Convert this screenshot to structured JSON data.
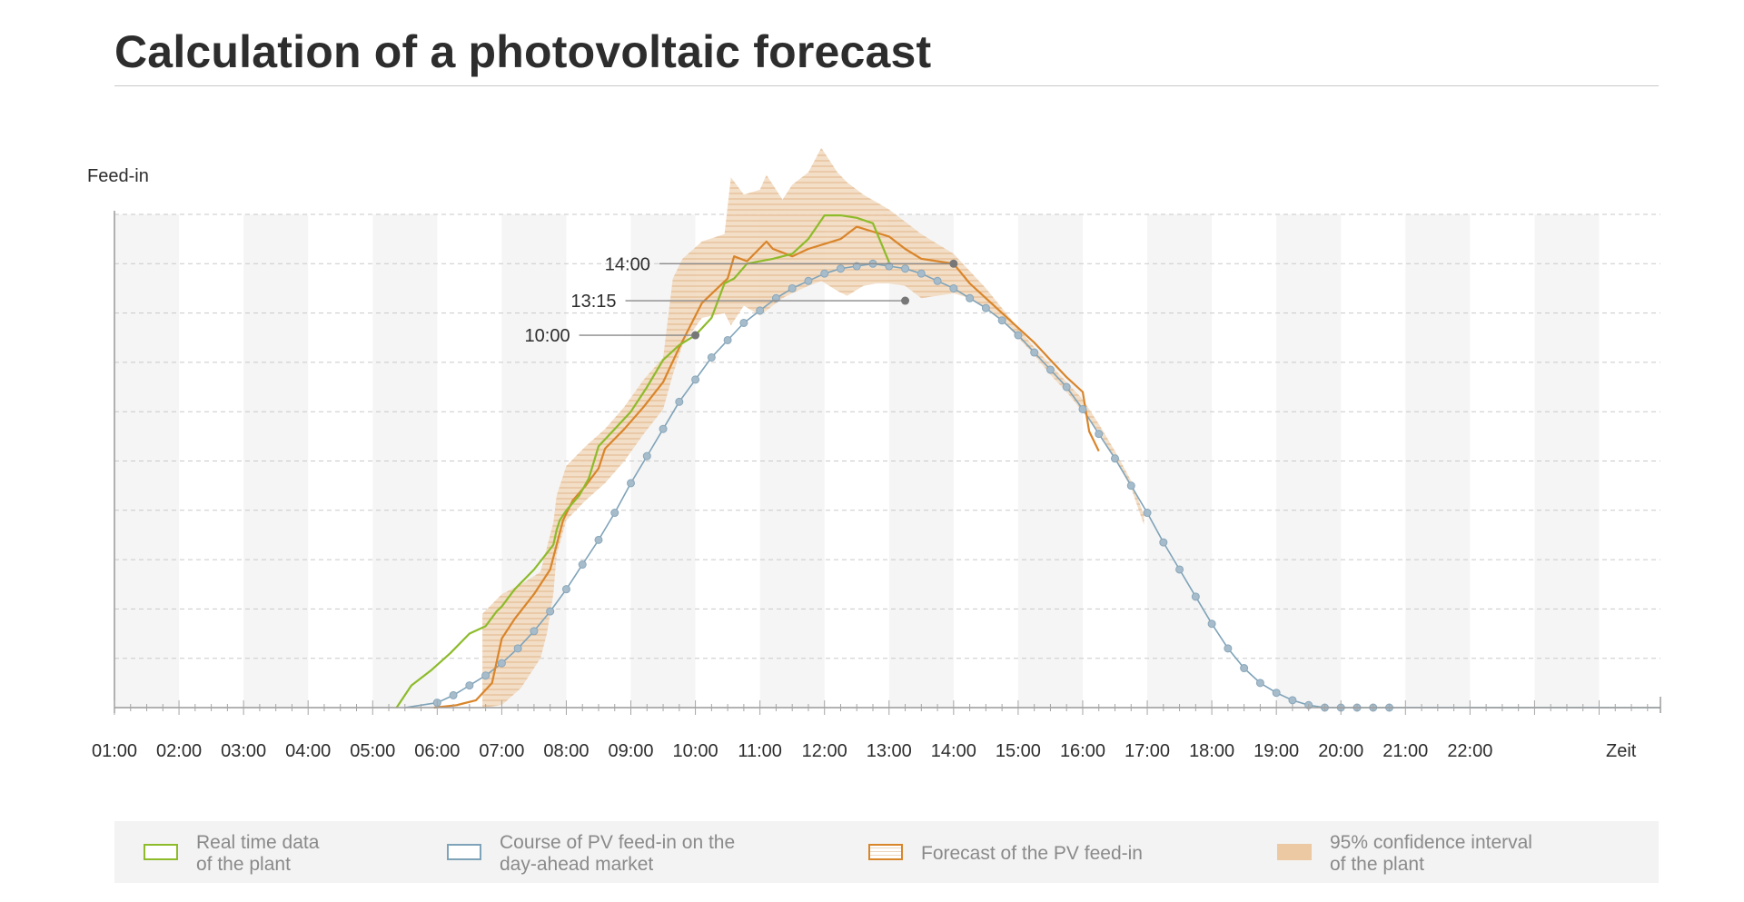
{
  "title": "Calculation of a photovoltaic forecast",
  "chart_data": {
    "type": "line",
    "ylabel": "Feed-in",
    "xlabel": "Zeit",
    "x_tick_labels": [
      "01:00",
      "02:00",
      "03:00",
      "04:00",
      "05:00",
      "06:00",
      "07:00",
      "08:00",
      "09:00",
      "10:00",
      "11:00",
      "12:00",
      "13:00",
      "14:00",
      "15:00",
      "16:00",
      "17:00",
      "18:00",
      "19:00",
      "20:00",
      "21:00",
      "22:00"
    ],
    "xlim": [
      1,
      24.95
    ],
    "ylim": [
      0,
      10
    ],
    "grid": "horizontal dashed, alternating vertical bands",
    "annotations": [
      {
        "label": "14:00",
        "x": 14.0,
        "y": 9.0
      },
      {
        "label": "13:15",
        "x": 13.25,
        "y": 8.25
      },
      {
        "label": "10:00",
        "x": 10.0,
        "y": 7.55
      }
    ],
    "series": [
      {
        "name": "Real time data of the plant",
        "color": "#8dbb2a",
        "x": [
          5.37,
          5.6,
          5.9,
          6.2,
          6.5,
          6.75,
          6.92,
          7.0,
          7.2,
          7.5,
          7.8,
          7.85,
          7.9,
          8.0,
          8.2,
          8.35,
          8.5,
          8.75,
          9.0,
          9.25,
          9.5,
          9.75,
          10.0,
          10.25,
          10.45,
          10.6,
          10.8,
          11.0,
          11.2,
          11.5,
          11.75,
          12.0,
          12.25,
          12.5,
          12.75,
          13.0
        ],
        "y": [
          0,
          0.45,
          0.75,
          1.1,
          1.5,
          1.65,
          1.95,
          2.05,
          2.4,
          2.8,
          3.3,
          3.6,
          3.8,
          4.0,
          4.3,
          4.65,
          5.3,
          5.65,
          6.0,
          6.5,
          7.05,
          7.35,
          7.55,
          7.9,
          8.6,
          8.7,
          9.0,
          9.05,
          9.1,
          9.2,
          9.5,
          9.98,
          9.98,
          9.93,
          9.82,
          9.03
        ]
      },
      {
        "name": "Course of PV feed-in on the day-ahead market",
        "color": "#7fa3b9",
        "x": [
          5.5,
          5.75,
          6.0,
          6.25,
          6.5,
          6.75,
          7.0,
          7.25,
          7.5,
          7.75,
          8.0,
          8.25,
          8.5,
          8.75,
          9.0,
          9.25,
          9.5,
          9.75,
          10.0,
          10.25,
          10.5,
          10.75,
          11.0,
          11.25,
          11.5,
          11.75,
          12.0,
          12.25,
          12.5,
          12.75,
          13.0,
          13.25,
          13.5,
          13.75,
          14.0,
          14.25,
          14.5,
          14.75,
          15.0,
          15.25,
          15.5,
          15.75,
          16.0,
          16.25,
          16.5,
          16.75,
          17.0,
          17.25,
          17.5,
          17.75,
          18.0,
          18.25,
          18.5,
          18.75,
          19.0,
          19.25,
          19.5,
          19.75,
          20.0,
          20.25,
          20.5,
          20.75,
          21.0,
          24.95
        ],
        "y": [
          0,
          0.05,
          0.1,
          0.25,
          0.45,
          0.65,
          0.9,
          1.2,
          1.55,
          1.95,
          2.4,
          2.9,
          3.4,
          3.95,
          4.55,
          5.1,
          5.65,
          6.2,
          6.65,
          7.1,
          7.45,
          7.8,
          8.05,
          8.3,
          8.5,
          8.65,
          8.8,
          8.9,
          8.95,
          9.0,
          8.95,
          8.9,
          8.8,
          8.65,
          8.5,
          8.3,
          8.1,
          7.85,
          7.55,
          7.2,
          6.85,
          6.5,
          6.05,
          5.55,
          5.05,
          4.5,
          3.95,
          3.35,
          2.8,
          2.25,
          1.7,
          1.2,
          0.8,
          0.5,
          0.3,
          0.15,
          0.05,
          0,
          0,
          0,
          0,
          0,
          0,
          0
        ]
      },
      {
        "name": "Forecast of the PV feed-in",
        "color": "#d9852a",
        "x": [
          5.95,
          6.3,
          6.6,
          6.85,
          7.0,
          7.2,
          7.5,
          7.75,
          7.85,
          7.95,
          8.1,
          8.3,
          8.5,
          8.6,
          8.9,
          9.2,
          9.5,
          9.75,
          10.1,
          10.5,
          10.6,
          10.8,
          11.1,
          11.2,
          11.3,
          11.5,
          11.75,
          12.0,
          12.25,
          12.5,
          12.75,
          13.0,
          13.25,
          13.5,
          13.75,
          14.0,
          14.25,
          14.5,
          14.75,
          15.0,
          15.25,
          15.5,
          15.75,
          16.0,
          16.1,
          16.25
        ],
        "y": [
          0,
          0.05,
          0.15,
          0.5,
          1.4,
          1.8,
          2.3,
          2.8,
          3.3,
          3.8,
          4.2,
          4.5,
          4.85,
          5.25,
          5.65,
          6.1,
          6.6,
          7.3,
          8.2,
          8.7,
          9.15,
          9.05,
          9.45,
          9.3,
          9.25,
          9.15,
          9.3,
          9.4,
          9.5,
          9.75,
          9.65,
          9.55,
          9.3,
          9.1,
          9.05,
          9.0,
          8.6,
          8.3,
          8.0,
          7.7,
          7.4,
          7.05,
          6.7,
          6.4,
          5.6,
          5.2
        ]
      },
      {
        "name": "95% confidence interval of the plant",
        "color": "#ecc9a2",
        "x": [
          6.7,
          7.0,
          7.3,
          7.6,
          7.7,
          7.8,
          7.85,
          8.0,
          8.3,
          8.6,
          8.9,
          9.2,
          9.5,
          9.65,
          9.8,
          10.1,
          10.45,
          10.55,
          10.75,
          11.0,
          11.1,
          11.35,
          11.5,
          11.75,
          11.95,
          12.2,
          12.35,
          12.6,
          12.8,
          13.0,
          13.25,
          13.5,
          13.75,
          14.0,
          14.25,
          14.5,
          14.75,
          15.0,
          15.25,
          15.5,
          15.75,
          16.0,
          16.25,
          16.5,
          16.75,
          16.95
        ],
        "upper": [
          1.9,
          2.3,
          2.5,
          2.75,
          3.25,
          3.75,
          4.3,
          4.9,
          5.3,
          5.65,
          6.1,
          6.65,
          7.1,
          8.7,
          9.1,
          9.45,
          9.6,
          10.75,
          10.4,
          10.5,
          10.8,
          10.3,
          10.6,
          10.85,
          11.35,
          10.85,
          10.65,
          10.4,
          10.25,
          10.1,
          9.85,
          9.6,
          9.4,
          9.2,
          8.85,
          8.5,
          8.1,
          7.7,
          7.3,
          6.95,
          6.6,
          6.25,
          5.75,
          5.2,
          4.6,
          3.9
        ],
        "lower": [
          0,
          0.05,
          0.4,
          1.0,
          1.5,
          2.3,
          3.1,
          3.8,
          4.2,
          4.55,
          5.0,
          5.55,
          6.05,
          6.75,
          7.35,
          7.9,
          8.0,
          7.75,
          8.15,
          7.95,
          8.05,
          8.3,
          8.4,
          8.55,
          8.65,
          8.45,
          8.35,
          8.55,
          8.6,
          8.6,
          8.55,
          8.3,
          8.35,
          8.4,
          8.3,
          8.1,
          7.85,
          7.5,
          7.15,
          6.75,
          6.4,
          6.0,
          5.6,
          5.05,
          4.45,
          3.7
        ]
      }
    ]
  },
  "legend": [
    {
      "line1": "Real time data",
      "line2": "of the plant",
      "style": "outline",
      "color": "#8dbb2a"
    },
    {
      "line1": "Course of PV feed-in on the",
      "line2": "day-ahead market",
      "style": "outline",
      "color": "#7fa3b9"
    },
    {
      "line1": "Forecast of the PV feed-in",
      "line2": "",
      "style": "outline-striped",
      "color": "#d9852a"
    },
    {
      "line1": "95% confidence interval",
      "line2": "of the plant",
      "style": "filled",
      "color": "#ecc9a2"
    }
  ]
}
